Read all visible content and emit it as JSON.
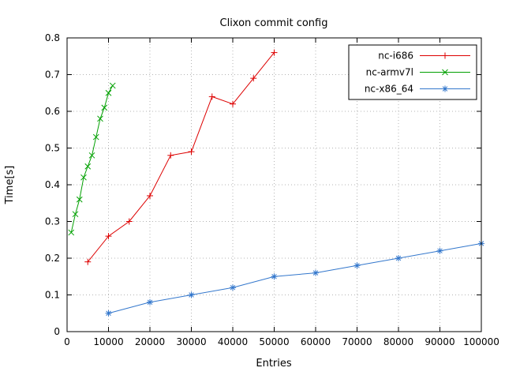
{
  "chart_data": {
    "type": "line",
    "title": "Clixon commit config",
    "xlabel": "Entries",
    "ylabel": "Time[s]",
    "xlim": [
      0,
      100000
    ],
    "ylim": [
      0,
      0.8
    ],
    "xticks": [
      0,
      10000,
      20000,
      30000,
      40000,
      50000,
      60000,
      70000,
      80000,
      90000,
      100000
    ],
    "yticks": [
      0,
      0.1,
      0.2,
      0.3,
      0.4,
      0.5,
      0.6,
      0.7,
      0.8
    ],
    "grid": true,
    "legend_position": "top-right",
    "colors": {
      "grid": "#b4b4b4",
      "border": "#000000",
      "background": "#ffffff"
    },
    "series": [
      {
        "name": "nc-i686",
        "color": "#dd0000",
        "marker": "plus",
        "x": [
          5000,
          10000,
          15000,
          20000,
          25000,
          30000,
          35000,
          40000,
          45000,
          50000
        ],
        "y": [
          0.19,
          0.26,
          0.3,
          0.37,
          0.48,
          0.49,
          0.64,
          0.62,
          0.69,
          0.76
        ]
      },
      {
        "name": "nc-armv7l",
        "color": "#00a000",
        "marker": "x",
        "x": [
          1000,
          2000,
          3000,
          4000,
          5000,
          6000,
          7000,
          8000,
          9000,
          10000,
          11000
        ],
        "y": [
          0.27,
          0.32,
          0.36,
          0.42,
          0.45,
          0.48,
          0.53,
          0.58,
          0.61,
          0.65,
          0.67
        ]
      },
      {
        "name": "nc-x86_64",
        "color": "#3377cc",
        "marker": "asterisk",
        "x": [
          10000,
          20000,
          30000,
          40000,
          50000,
          60000,
          70000,
          80000,
          90000,
          100000
        ],
        "y": [
          0.05,
          0.08,
          0.1,
          0.12,
          0.15,
          0.16,
          0.18,
          0.2,
          0.22,
          0.24
        ]
      }
    ]
  }
}
